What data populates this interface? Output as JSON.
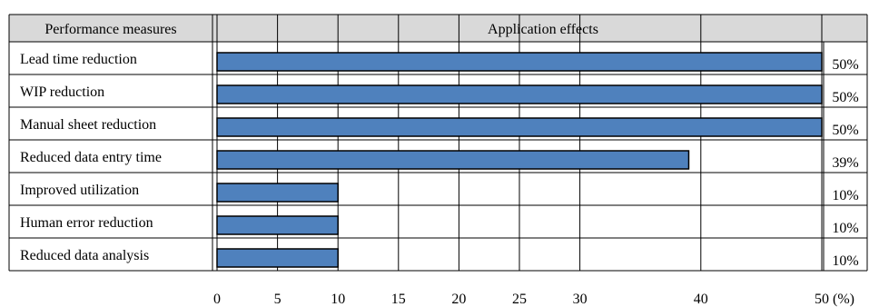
{
  "chart_data": {
    "type": "bar",
    "orientation": "horizontal",
    "header": {
      "left": "Performance measures",
      "right": "Application effects"
    },
    "categories": [
      "Lead time reduction",
      "WIP reduction",
      "Manual sheet reduction",
      "Reduced data entry time",
      "Improved utilization",
      "Human error reduction",
      "Reduced data analysis"
    ],
    "values": [
      50,
      50,
      50,
      39,
      10,
      10,
      10
    ],
    "value_labels": [
      "50%",
      "50%",
      "50%",
      "39%",
      "10%",
      "10%",
      "10%"
    ],
    "xlim": [
      0,
      50
    ],
    "xticks": [
      0,
      5,
      10,
      15,
      20,
      25,
      30,
      40,
      50
    ],
    "xtick_labels": [
      "0",
      "5",
      "10",
      "15",
      "20",
      "25",
      "30",
      "40",
      "50"
    ],
    "x_unit_label": "(%)",
    "grid": true,
    "bar_color": "#4F81BD",
    "header_fill": "#D9D9D9"
  }
}
